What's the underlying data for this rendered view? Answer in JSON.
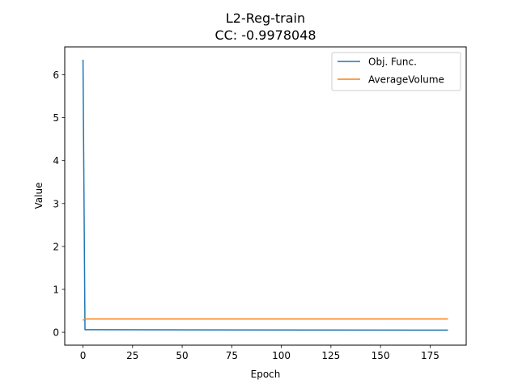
{
  "chart_data": {
    "type": "line",
    "title": "L2-Reg-train",
    "subtitle": "CC: -0.9978048",
    "xlabel": "Epoch",
    "ylabel": "Value",
    "xlim": [
      -9.2,
      193.2
    ],
    "ylim": [
      -0.3,
      6.65
    ],
    "x_ticks": [
      0,
      25,
      50,
      75,
      100,
      125,
      150,
      175
    ],
    "y_ticks": [
      0,
      1,
      2,
      3,
      4,
      5,
      6
    ],
    "grid": false,
    "legend_position": "top-right",
    "series": [
      {
        "name": "Obj. Func.",
        "color": "#1f77b4",
        "points": [
          [
            0,
            6.35
          ],
          [
            1,
            0.06
          ],
          [
            184,
            0.05
          ]
        ]
      },
      {
        "name": "AverageVolume",
        "color": "#ff7f0e",
        "points": [
          [
            0,
            0.28
          ],
          [
            1,
            0.31
          ],
          [
            184,
            0.31
          ]
        ]
      }
    ]
  }
}
